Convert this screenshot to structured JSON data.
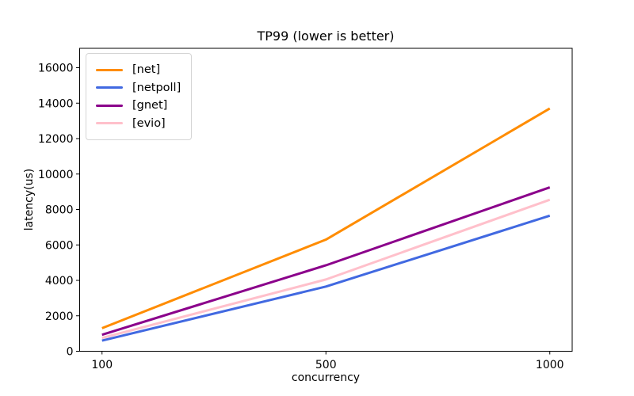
{
  "chart_data": {
    "type": "line",
    "title": "TP99 (lower is better)",
    "xlabel": "concurrency",
    "ylabel": "latency(us)",
    "categories": [
      "100",
      "500",
      "1000"
    ],
    "series": [
      {
        "name": "[net]",
        "color": "#ff8c00",
        "values": [
          1300,
          6300,
          13700
        ]
      },
      {
        "name": "[netpoll]",
        "color": "#4169e1",
        "values": [
          600,
          3650,
          7650
        ]
      },
      {
        "name": "[gnet]",
        "color": "#8b008b",
        "values": [
          930,
          4850,
          9250
        ]
      },
      {
        "name": "[evio]",
        "color": "#ffc0cb",
        "values": [
          750,
          4050,
          8550
        ]
      }
    ],
    "ylim": [
      0,
      16000
    ],
    "yticks": [
      0,
      2000,
      4000,
      6000,
      8000,
      10000,
      12000,
      14000,
      16000
    ],
    "xticks": [
      "100",
      "500",
      "1000"
    ],
    "legend_position": "upper left",
    "grid": false,
    "line_width": 3,
    "background": "#ffffff",
    "axis_color": "#000000"
  }
}
